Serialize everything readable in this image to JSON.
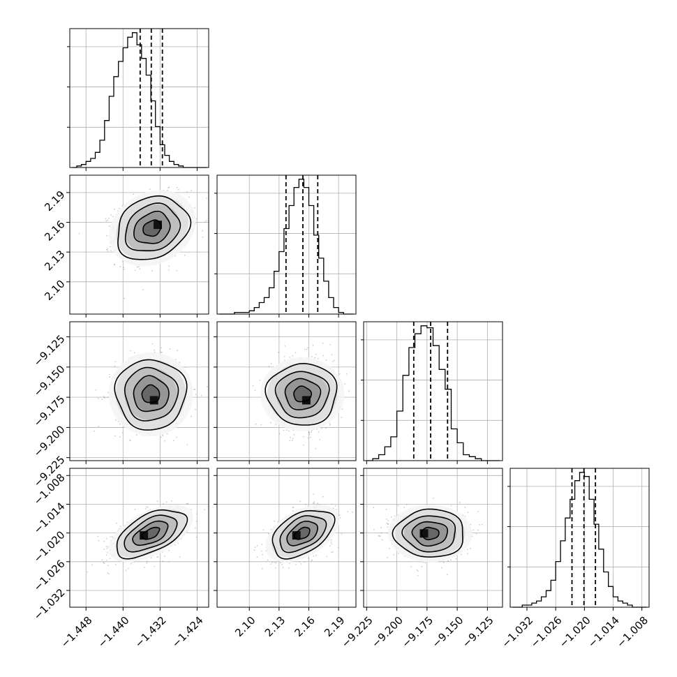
{
  "chart_data": {
    "type": "corner",
    "grid": true,
    "colors": {
      "line": "#000000",
      "grid": "#b0b0b0",
      "scatter": "#8c8c8c"
    },
    "parameters": [
      {
        "index": 0,
        "range": [
          -1.4515,
          -1.4215
        ],
        "ticks": [
          -1.448,
          -1.44,
          -1.432,
          -1.424
        ],
        "tick_labels": [
          "−1.448",
          "−1.440",
          "−1.432",
          "−1.424"
        ],
        "quantiles": [
          -1.4363,
          -1.4339,
          -1.4315
        ],
        "hist_x": [
          -1.4505,
          -1.4495,
          -1.4485,
          -1.4475,
          -1.4465,
          -1.4455,
          -1.4445,
          -1.4435,
          -1.4425,
          -1.4415,
          -1.4405,
          -1.4395,
          -1.4385,
          -1.4375,
          -1.4365,
          -1.4355,
          -1.4345,
          -1.4335,
          -1.4325,
          -1.4315,
          -1.4305,
          -1.4295,
          -1.4285,
          -1.4275,
          -1.4265,
          -1.4255,
          -1.4245,
          -1.4235,
          -1.4225
        ],
        "hist_counts": [
          0,
          1,
          2,
          4,
          6,
          10,
          18,
          31,
          47,
          60,
          70,
          79,
          86,
          89,
          81,
          72,
          61,
          44,
          27,
          15,
          8,
          4,
          2,
          1,
          0,
          0,
          0,
          0,
          0
        ]
      },
      {
        "index": 1,
        "range": [
          2.0675,
          2.2075
        ],
        "ticks": [
          2.1,
          2.13,
          2.16,
          2.19
        ],
        "tick_labels": [
          "2.10",
          "2.13",
          "2.16",
          "2.19"
        ],
        "quantiles": [
          2.137,
          2.154,
          2.169
        ],
        "hist_x": [
          2.0725,
          2.0775,
          2.0825,
          2.0875,
          2.0925,
          2.0975,
          2.1025,
          2.1075,
          2.1125,
          2.1175,
          2.1225,
          2.1275,
          2.1325,
          2.1375,
          2.1425,
          2.1475,
          2.1525,
          2.1575,
          2.1625,
          2.1675,
          2.1725,
          2.1775,
          2.1825,
          2.1875,
          2.1925,
          2.1975,
          2.2025
        ],
        "hist_counts": [
          0,
          0,
          0,
          1,
          1,
          1,
          2,
          4,
          7,
          10,
          16,
          26,
          38,
          52,
          66,
          77,
          82,
          77,
          66,
          48,
          34,
          20,
          10,
          4,
          1,
          0,
          0
        ]
      },
      {
        "index": 2,
        "range": [
          -9.2275,
          -9.1125
        ],
        "ticks": [
          -9.225,
          -9.2,
          -9.175,
          -9.15,
          -9.125
        ],
        "tick_labels": [
          "−9.225",
          "−9.200",
          "−9.175",
          "−9.150",
          "−9.125"
        ],
        "quantiles": [
          -9.186,
          -9.172,
          -9.158
        ],
        "hist_x": [
          -9.2225,
          -9.2175,
          -9.2125,
          -9.2075,
          -9.2025,
          -9.1975,
          -9.1925,
          -9.1875,
          -9.1825,
          -9.1775,
          -9.1725,
          -9.1675,
          -9.1625,
          -9.1575,
          -9.1525,
          -9.1475,
          -9.1425,
          -9.1375,
          -9.1325,
          -9.1275,
          -9.1225,
          -9.1175
        ],
        "hist_counts": [
          0,
          1,
          3,
          7,
          12,
          25,
          43,
          57,
          64,
          68,
          67,
          58,
          46,
          36,
          16,
          9,
          3,
          2,
          1,
          0,
          0,
          0
        ]
      },
      {
        "index": 3,
        "range": [
          -1.0355,
          -1.0065
        ],
        "ticks": [
          -1.032,
          -1.026,
          -1.02,
          -1.014,
          -1.008
        ],
        "tick_labels": [
          "−1.032",
          "−1.026",
          "−1.020",
          "−1.014",
          "−1.008"
        ],
        "quantiles": [
          -1.0226,
          -1.0201,
          -1.0177
        ],
        "hist_x": [
          -1.0345,
          -1.0335,
          -1.0325,
          -1.0315,
          -1.0305,
          -1.0295,
          -1.0285,
          -1.0275,
          -1.0265,
          -1.0255,
          -1.0245,
          -1.0235,
          -1.0225,
          -1.0215,
          -1.0205,
          -1.0195,
          -1.0185,
          -1.0175,
          -1.0165,
          -1.0155,
          -1.0145,
          -1.0135,
          -1.0125,
          -1.0115,
          -1.0105,
          -1.0095,
          -1.0085,
          -1.0075
        ],
        "hist_counts": [
          0,
          0,
          1,
          1,
          2,
          3,
          5,
          8,
          13,
          22,
          32,
          43,
          52,
          61,
          65,
          63,
          52,
          40,
          28,
          17,
          10,
          5,
          3,
          2,
          1,
          0,
          0,
          0
        ]
      }
    ],
    "pairs": [
      {
        "x_param": 0,
        "y_param": 1,
        "center": [
          -1.4337,
          2.154
        ],
        "sd": [
          0.0039,
          0.016
        ],
        "rho": 0.2,
        "contour_levels": [
          0.5,
          1.0,
          1.5,
          2.0
        ],
        "peak_cell": [
          -1.4325,
          2.1575
        ]
      },
      {
        "x_param": 0,
        "y_param": 2,
        "center": [
          -1.434,
          -9.1725
        ],
        "sd": [
          0.0038,
          0.0145
        ],
        "rho": 0.0,
        "contour_levels": [
          0.5,
          1.0,
          1.5,
          2.0
        ],
        "peak_cell": [
          -1.4333,
          -9.1775
        ]
      },
      {
        "x_param": 1,
        "y_param": 2,
        "center": [
          2.1535,
          -9.1725
        ],
        "sd": [
          0.0155,
          0.0145
        ],
        "rho": 0.0,
        "contour_levels": [
          0.5,
          1.0,
          1.5,
          2.0
        ],
        "peak_cell": [
          2.1575,
          -9.1775
        ]
      },
      {
        "x_param": 0,
        "y_param": 3,
        "center": [
          -1.434,
          -1.0201
        ],
        "sd": [
          0.0038,
          0.0025
        ],
        "rho": 0.55,
        "contour_levels": [
          0.5,
          1.0,
          1.5,
          2.0
        ],
        "peak_cell": [
          -1.4355,
          -1.0205
        ]
      },
      {
        "x_param": 1,
        "y_param": 3,
        "center": [
          2.1535,
          -1.0201
        ],
        "sd": [
          0.0155,
          0.0025
        ],
        "rho": 0.45,
        "contour_levels": [
          0.5,
          1.0,
          1.5,
          2.0
        ],
        "peak_cell": [
          2.1475,
          -1.0205
        ]
      },
      {
        "x_param": 2,
        "y_param": 3,
        "center": [
          -9.1725,
          -1.0201
        ],
        "sd": [
          0.0145,
          0.0025
        ],
        "rho": 0.0,
        "contour_levels": [
          0.5,
          1.0,
          1.5,
          2.0
        ],
        "peak_cell": [
          -9.1775,
          -1.0201
        ]
      }
    ]
  }
}
